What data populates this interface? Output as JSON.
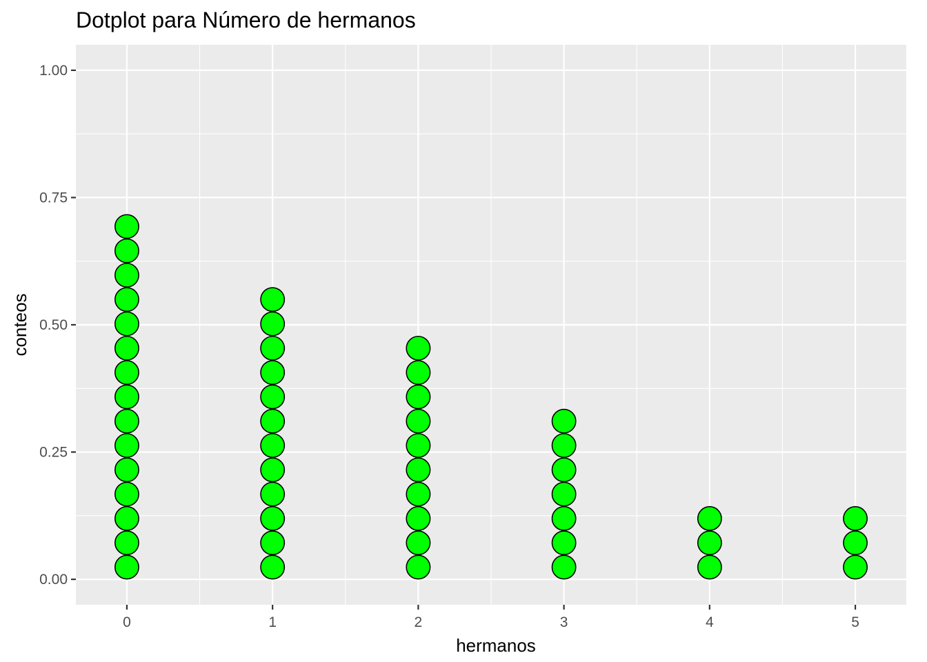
{
  "chart_data": {
    "type": "dotplot",
    "title": "Dotplot para Número de hermanos",
    "xlabel": "hermanos",
    "ylabel": "conteos",
    "x_ticks": [
      "0",
      "1",
      "2",
      "3",
      "4",
      "5"
    ],
    "y_ticks": [
      "0.00",
      "0.25",
      "0.50",
      "0.75",
      "1.00"
    ],
    "xlim": [
      -0.35,
      5.35
    ],
    "ylim": [
      -0.05,
      1.05
    ],
    "grid": true,
    "legend": "none",
    "points": [
      {
        "x": 0,
        "count": 15
      },
      {
        "x": 1,
        "count": 12
      },
      {
        "x": 2,
        "count": 10
      },
      {
        "x": 3,
        "count": 7
      },
      {
        "x": 4,
        "count": 3
      },
      {
        "x": 5,
        "count": 3
      }
    ],
    "dot_fill": "#00ff00",
    "dot_stroke": "#000000",
    "panel_background": "#ebebeb",
    "grid_color": "#ffffff"
  }
}
